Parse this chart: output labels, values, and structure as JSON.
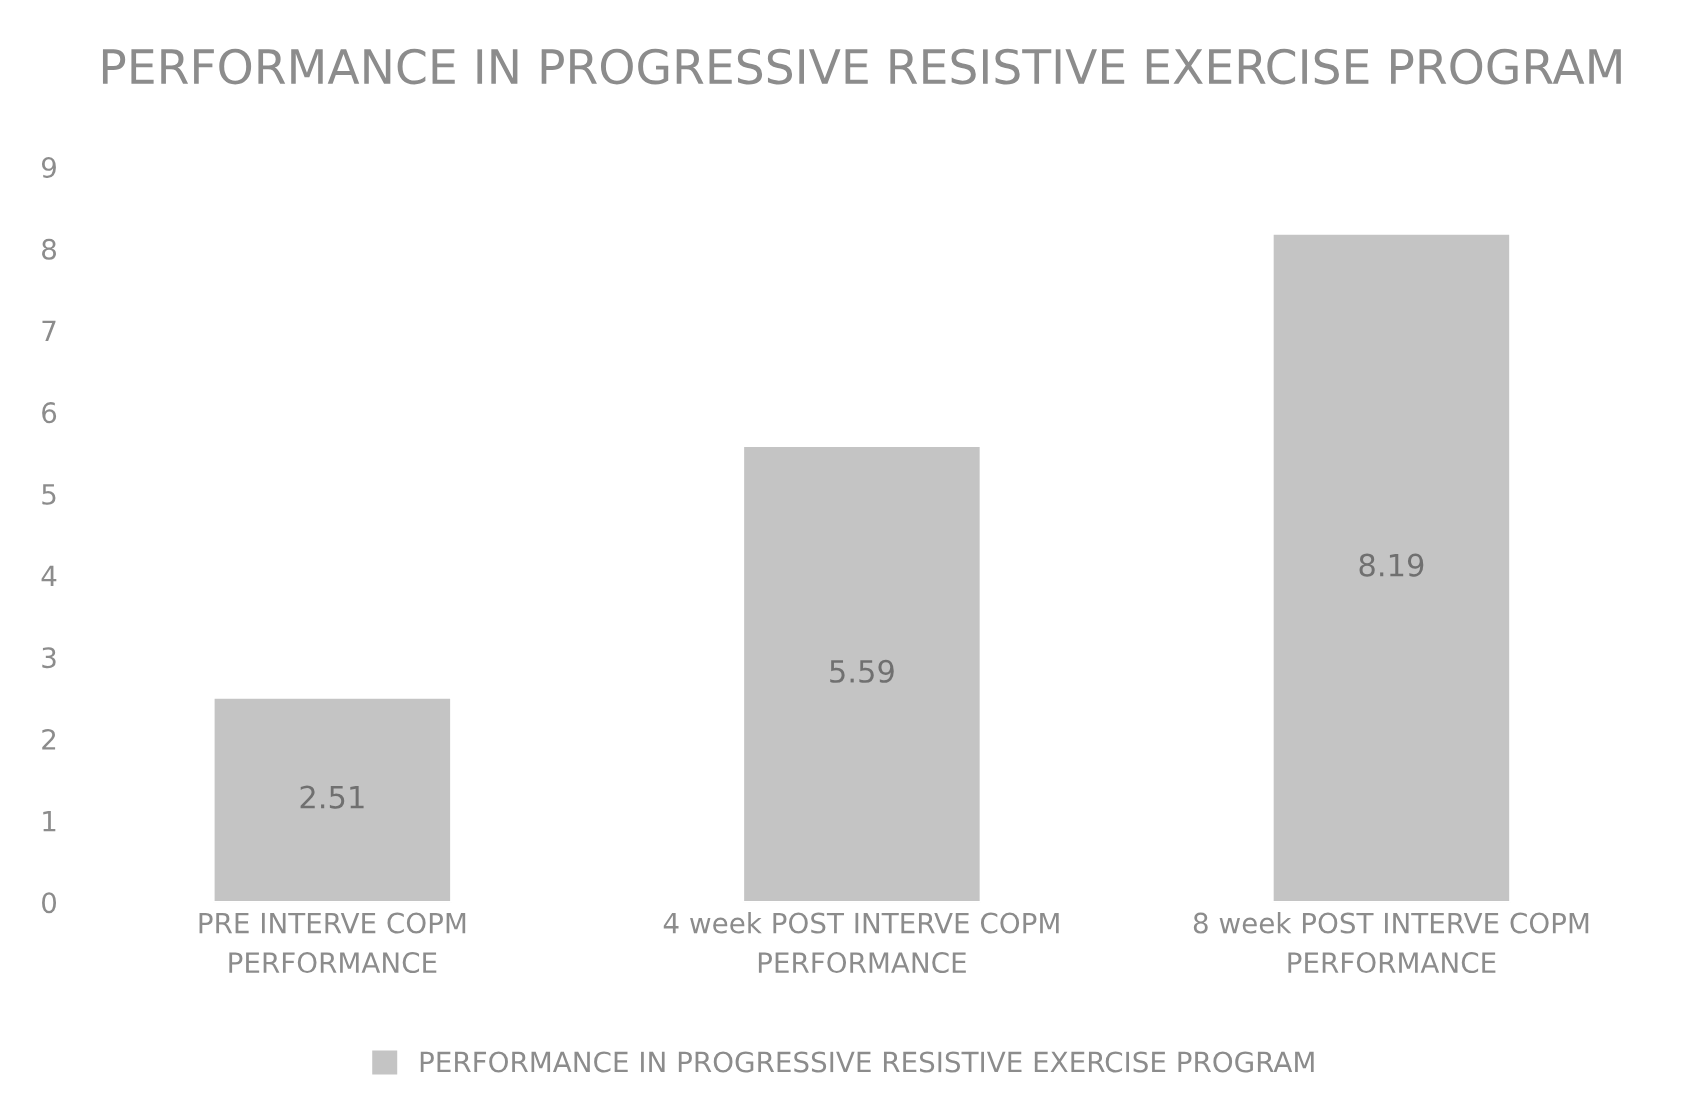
{
  "chart_data": {
    "type": "bar",
    "title": "PERFORMANCE IN PROGRESSIVE RESISTIVE EXERCISE PROGRAM",
    "categories": [
      "PRE INTERVE COPM PERFORMANCE",
      "4 week POST INTERVE COPM PERFORMANCE",
      "8 week POST INTERVE COPM PERFORMANCE"
    ],
    "series": [
      {
        "name": "PERFORMANCE IN PROGRESSIVE RESISTIVE EXERCISE PROGRAM",
        "color": "#c4c4c4",
        "values": [
          2.51,
          5.59,
          8.19
        ]
      }
    ],
    "ylim": [
      0,
      9
    ],
    "yticks": [
      0,
      1,
      2,
      3,
      4,
      5,
      6,
      7,
      8,
      9
    ],
    "data_labels": true,
    "grid": false,
    "legend": "bottom"
  }
}
